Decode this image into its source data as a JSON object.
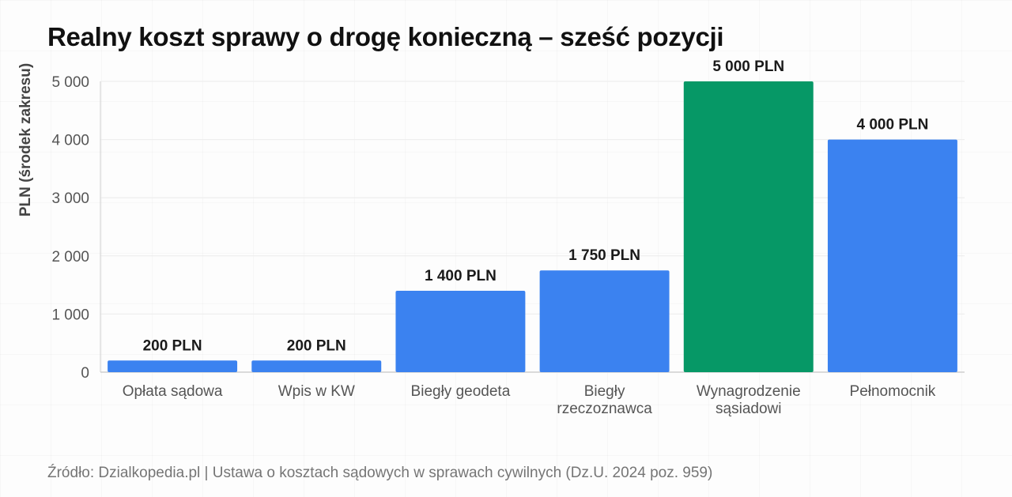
{
  "title": "Realny koszt sprawy o drogę konieczną – sześć pozycji",
  "source": "Źródło: Dzialkopedia.pl | Ustawa o kosztach sądowych w sprawach cywilnych (Dz.U. 2024 poz. 959)",
  "colors": {
    "default_bar": "#3b82f0",
    "highlight_bar": "#069866",
    "axis_text": "#555555",
    "label_text": "#1a1a1a"
  },
  "chart_data": {
    "type": "bar",
    "title": "Realny koszt sprawy o drogę konieczną – sześć pozycji",
    "xlabel": "",
    "ylabel": "PLN (środek zakresu)",
    "ylim": [
      0,
      5000
    ],
    "yticks": [
      0,
      1000,
      2000,
      3000,
      4000,
      5000
    ],
    "ytick_labels": [
      "0",
      "1 000",
      "2 000",
      "3 000",
      "4 000",
      "5 000"
    ],
    "grid": true,
    "categories": [
      [
        "Opłata sądowa"
      ],
      [
        "Wpis w KW"
      ],
      [
        "Biegły geodeta"
      ],
      [
        "Biegły",
        "rzeczoznawca"
      ],
      [
        "Wynagrodzenie",
        "sąsiadowi"
      ],
      [
        "Pełnomocnik"
      ]
    ],
    "values": [
      200,
      200,
      1400,
      1750,
      5000,
      4000
    ],
    "value_labels": [
      "200 PLN",
      "200 PLN",
      "1 400 PLN",
      "1 750 PLN",
      "5 000 PLN",
      "4 000 PLN"
    ],
    "bar_colors": [
      "#3b82f0",
      "#3b82f0",
      "#3b82f0",
      "#3b82f0",
      "#069866",
      "#3b82f0"
    ]
  }
}
